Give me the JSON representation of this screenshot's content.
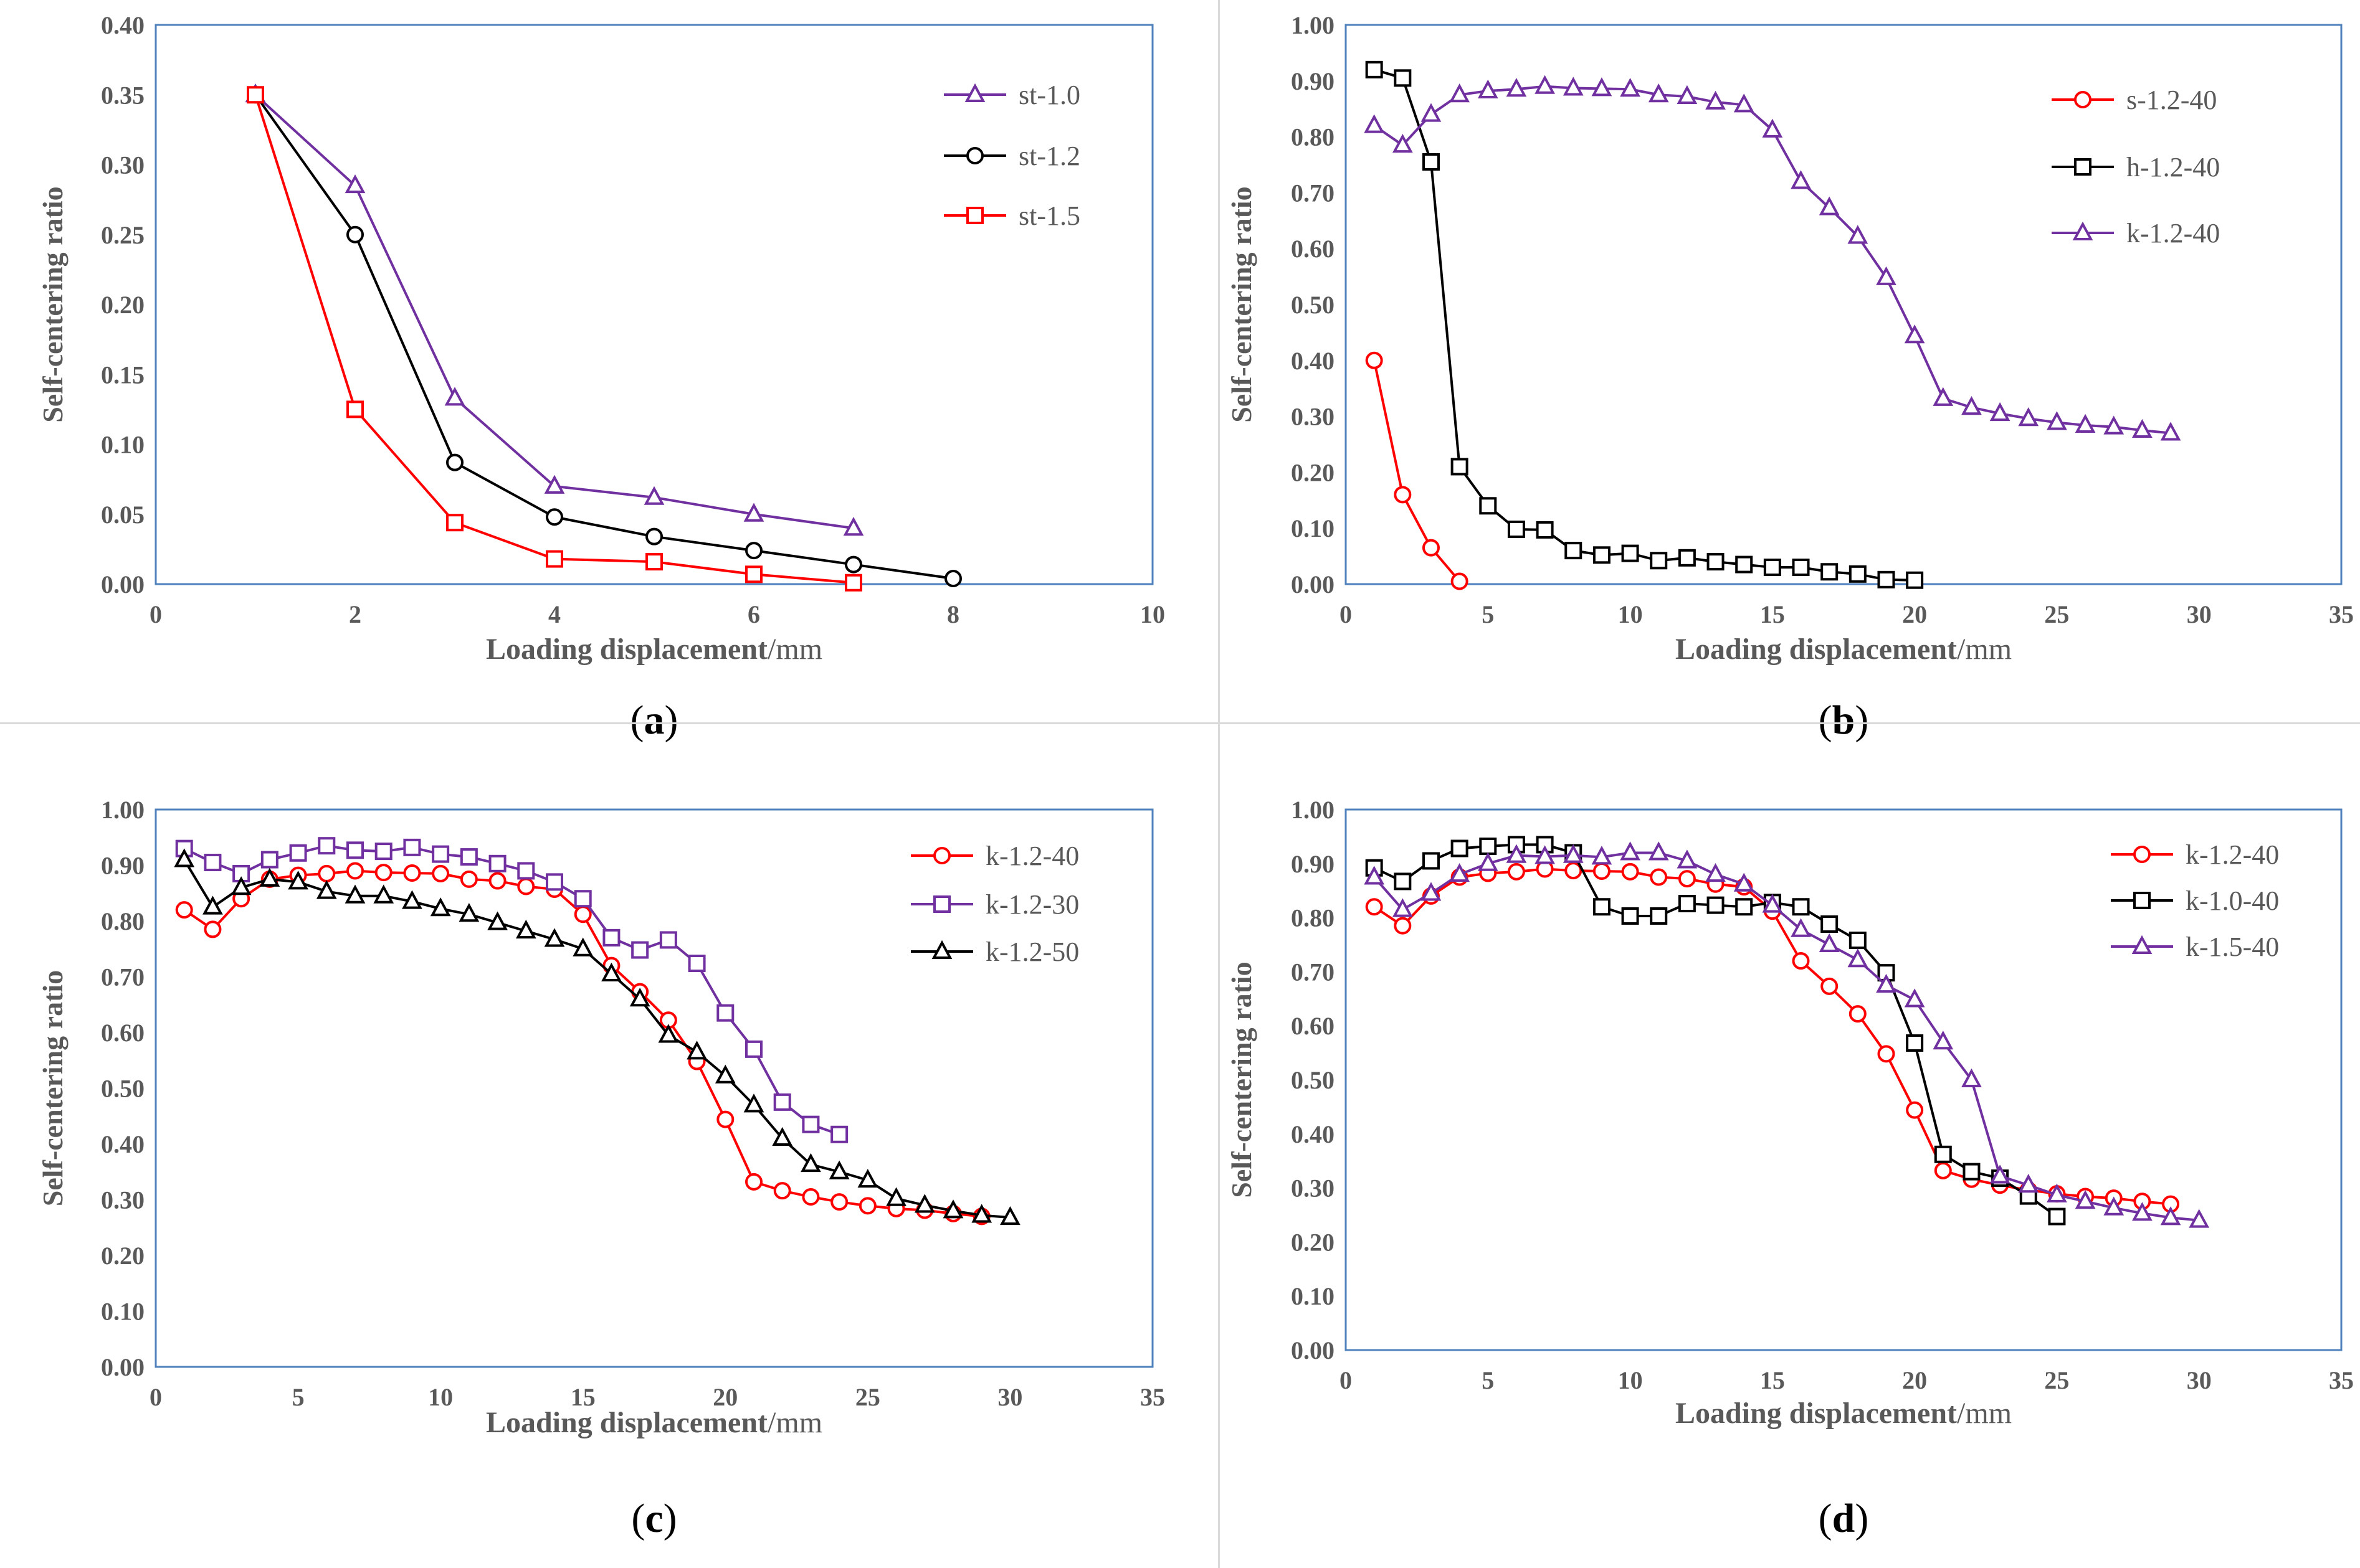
{
  "chart_data": [
    {
      "type": "line",
      "panel_label": "a",
      "xlabel_bold": "Loading displacement",
      "xlabel_unit": "/mm",
      "ylabel": "Self-centering ratio",
      "xlim": [
        0,
        10
      ],
      "ylim": [
        0,
        0.4
      ],
      "xticks": [
        0,
        2,
        4,
        6,
        8,
        10
      ],
      "yticks": [
        0,
        0.05,
        0.1,
        0.15,
        0.2,
        0.25,
        0.3,
        0.35,
        0.4
      ],
      "ytick_decimals": 2,
      "legend": "top-right",
      "series": [
        {
          "name": "st-1.0",
          "color": "#7030A0",
          "marker": "triangle",
          "x": [
            1,
            2,
            3,
            4,
            5,
            6,
            7
          ],
          "y": [
            0.35,
            0.285,
            0.133,
            0.07,
            0.062,
            0.05,
            0.04
          ]
        },
        {
          "name": "st-1.2",
          "color": "#000000",
          "marker": "circle",
          "x": [
            1,
            2,
            3,
            4,
            5,
            6,
            7,
            8
          ],
          "y": [
            0.35,
            0.25,
            0.087,
            0.048,
            0.034,
            0.024,
            0.014,
            0.004
          ]
        },
        {
          "name": "st-1.5",
          "color": "#FF0000",
          "marker": "square",
          "x": [
            1,
            2,
            3,
            4,
            5,
            6,
            7
          ],
          "y": [
            0.35,
            0.125,
            0.044,
            0.018,
            0.016,
            0.007,
            0.001
          ]
        }
      ]
    },
    {
      "type": "line",
      "panel_label": "b",
      "xlabel_bold": "Loading displacement",
      "xlabel_unit": "/mm",
      "ylabel": "Self-centering ratio",
      "xlim": [
        0,
        35
      ],
      "ylim": [
        0,
        1
      ],
      "xticks": [
        0,
        5,
        10,
        15,
        20,
        25,
        30,
        35
      ],
      "yticks": [
        0,
        0.1,
        0.2,
        0.3,
        0.4,
        0.5,
        0.6,
        0.7,
        0.8,
        0.9,
        1.0
      ],
      "ytick_decimals": 2,
      "legend": "top-right",
      "series": [
        {
          "name": "s-1.2-40",
          "color": "#FF0000",
          "marker": "circle",
          "x": [
            1,
            2,
            3,
            4
          ],
          "y": [
            0.4,
            0.16,
            0.065,
            0.005
          ]
        },
        {
          "name": "h-1.2-40",
          "color": "#000000",
          "marker": "square",
          "x": [
            1,
            2,
            3,
            4,
            5,
            6,
            7,
            8,
            9,
            10,
            11,
            12,
            13,
            14,
            15,
            16,
            17,
            18,
            19,
            20
          ],
          "y": [
            0.92,
            0.905,
            0.755,
            0.21,
            0.14,
            0.098,
            0.097,
            0.06,
            0.052,
            0.055,
            0.042,
            0.047,
            0.04,
            0.035,
            0.03,
            0.03,
            0.022,
            0.018,
            0.008,
            0.007
          ]
        },
        {
          "name": "k-1.2-40",
          "color": "#7030A0",
          "marker": "triangle",
          "x": [
            1,
            2,
            3,
            4,
            5,
            6,
            7,
            8,
            9,
            10,
            11,
            12,
            13,
            14,
            15,
            16,
            17,
            18,
            19,
            20,
            21,
            22,
            23,
            24,
            25,
            26,
            27,
            28,
            29
          ],
          "y": [
            0.82,
            0.785,
            0.84,
            0.875,
            0.882,
            0.885,
            0.89,
            0.887,
            0.886,
            0.885,
            0.875,
            0.872,
            0.862,
            0.857,
            0.812,
            0.72,
            0.673,
            0.622,
            0.548,
            0.444,
            0.332,
            0.316,
            0.305,
            0.296,
            0.289,
            0.284,
            0.281,
            0.275,
            0.27
          ]
        }
      ]
    },
    {
      "type": "line",
      "panel_label": "c",
      "xlabel_bold": "Loading displacement",
      "xlabel_unit": "/mm",
      "ylabel": "Self-centering ratio",
      "xlim": [
        0,
        35
      ],
      "ylim": [
        0,
        1
      ],
      "xticks": [
        0,
        5,
        10,
        15,
        20,
        25,
        30,
        35
      ],
      "yticks": [
        0,
        0.1,
        0.2,
        0.3,
        0.4,
        0.5,
        0.6,
        0.7,
        0.8,
        0.9,
        1.0
      ],
      "ytick_decimals": 2,
      "legend": "top-right",
      "series": [
        {
          "name": "k-1.2-40",
          "color": "#FF0000",
          "marker": "circle",
          "x": [
            1,
            2,
            3,
            4,
            5,
            6,
            7,
            8,
            9,
            10,
            11,
            12,
            13,
            14,
            15,
            16,
            17,
            18,
            19,
            20,
            21,
            22,
            23,
            24,
            25,
            26,
            27,
            28,
            29
          ],
          "y": [
            0.82,
            0.785,
            0.84,
            0.875,
            0.882,
            0.885,
            0.89,
            0.887,
            0.886,
            0.885,
            0.875,
            0.872,
            0.862,
            0.857,
            0.812,
            0.72,
            0.673,
            0.622,
            0.548,
            0.444,
            0.332,
            0.316,
            0.305,
            0.296,
            0.289,
            0.284,
            0.281,
            0.275,
            0.27
          ]
        },
        {
          "name": "k-1.2-30",
          "color": "#7030A0",
          "marker": "square",
          "x": [
            1,
            2,
            3,
            4,
            5,
            6,
            7,
            8,
            9,
            10,
            11,
            12,
            13,
            14,
            15,
            16,
            17,
            18,
            19,
            20,
            21,
            22,
            23,
            24
          ],
          "y": [
            0.93,
            0.905,
            0.885,
            0.91,
            0.922,
            0.935,
            0.927,
            0.925,
            0.932,
            0.92,
            0.915,
            0.903,
            0.89,
            0.87,
            0.84,
            0.77,
            0.748,
            0.766,
            0.724,
            0.635,
            0.57,
            0.475,
            0.435,
            0.417
          ]
        },
        {
          "name": "k-1.2-50",
          "color": "#000000",
          "marker": "triangle",
          "x": [
            1,
            2,
            3,
            4,
            5,
            6,
            7,
            8,
            9,
            10,
            11,
            12,
            13,
            14,
            15,
            16,
            17,
            18,
            19,
            20,
            21,
            22,
            23,
            24,
            25,
            26,
            27,
            28,
            29,
            30
          ],
          "y": [
            0.91,
            0.825,
            0.86,
            0.875,
            0.87,
            0.853,
            0.845,
            0.845,
            0.835,
            0.822,
            0.812,
            0.797,
            0.782,
            0.767,
            0.75,
            0.705,
            0.66,
            0.595,
            0.565,
            0.522,
            0.47,
            0.41,
            0.363,
            0.35,
            0.335,
            0.302,
            0.29,
            0.28,
            0.272,
            0.268
          ]
        }
      ]
    },
    {
      "type": "line",
      "panel_label": "d",
      "xlabel_bold": "Loading displacement",
      "xlabel_unit": "/mm",
      "ylabel": "Self-centering ratio",
      "xlim": [
        0,
        35
      ],
      "ylim": [
        0,
        1
      ],
      "xticks": [
        0,
        5,
        10,
        15,
        20,
        25,
        30,
        35
      ],
      "yticks": [
        0,
        0.1,
        0.2,
        0.3,
        0.4,
        0.5,
        0.6,
        0.7,
        0.8,
        0.9,
        1.0
      ],
      "ytick_decimals": 2,
      "legend": "top-right",
      "series": [
        {
          "name": "k-1.2-40",
          "color": "#FF0000",
          "marker": "circle",
          "x": [
            1,
            2,
            3,
            4,
            5,
            6,
            7,
            8,
            9,
            10,
            11,
            12,
            13,
            14,
            15,
            16,
            17,
            18,
            19,
            20,
            21,
            22,
            23,
            24,
            25,
            26,
            27,
            28,
            29
          ],
          "y": [
            0.82,
            0.785,
            0.84,
            0.875,
            0.882,
            0.885,
            0.89,
            0.887,
            0.886,
            0.885,
            0.875,
            0.872,
            0.862,
            0.857,
            0.812,
            0.72,
            0.673,
            0.622,
            0.548,
            0.444,
            0.332,
            0.316,
            0.305,
            0.296,
            0.289,
            0.284,
            0.281,
            0.275,
            0.27
          ]
        },
        {
          "name": "k-1.0-40",
          "color": "#000000",
          "marker": "square",
          "x": [
            1,
            2,
            3,
            4,
            5,
            6,
            7,
            8,
            9,
            10,
            11,
            12,
            13,
            14,
            15,
            16,
            17,
            18,
            19,
            20,
            21,
            22,
            23,
            24,
            25
          ],
          "y": [
            0.892,
            0.867,
            0.905,
            0.928,
            0.932,
            0.935,
            0.935,
            0.92,
            0.82,
            0.803,
            0.803,
            0.826,
            0.823,
            0.82,
            0.828,
            0.82,
            0.788,
            0.758,
            0.698,
            0.568,
            0.362,
            0.33,
            0.318,
            0.285,
            0.247
          ]
        },
        {
          "name": "k-1.5-40",
          "color": "#7030A0",
          "marker": "triangle",
          "x": [
            1,
            2,
            3,
            4,
            5,
            6,
            7,
            8,
            9,
            10,
            11,
            12,
            13,
            14,
            15,
            16,
            17,
            18,
            19,
            20,
            21,
            22,
            23,
            24,
            25,
            26,
            27,
            28,
            29,
            30
          ],
          "y": [
            0.875,
            0.815,
            0.845,
            0.88,
            0.9,
            0.915,
            0.913,
            0.915,
            0.912,
            0.92,
            0.92,
            0.905,
            0.88,
            0.862,
            0.823,
            0.778,
            0.75,
            0.722,
            0.675,
            0.648,
            0.57,
            0.5,
            0.322,
            0.305,
            0.287,
            0.275,
            0.263,
            0.253,
            0.245,
            0.24
          ]
        }
      ]
    }
  ]
}
